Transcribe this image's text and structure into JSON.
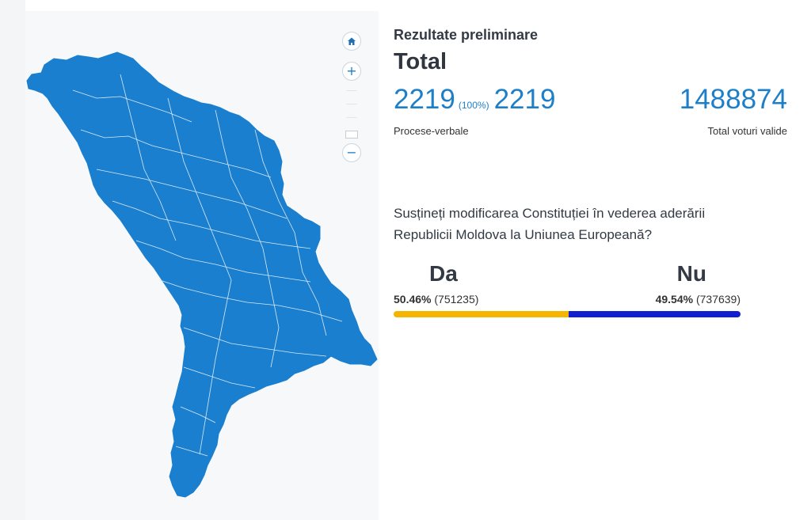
{
  "map": {
    "fill_color": "#1a7fcf",
    "border_color": "#d8e9f7",
    "controls": [
      {
        "name": "home",
        "icon": "home-icon"
      },
      {
        "name": "zoom_in",
        "icon": "plus-icon",
        "glyph": "+"
      },
      {
        "name": "zoom_out",
        "icon": "minus-icon",
        "glyph": "−"
      }
    ]
  },
  "results": {
    "subtitle": "Rezultate preliminare",
    "title": "Total",
    "processed": "2219",
    "processed_pct": "(100%)",
    "processed_total": "2219",
    "processed_label": "Procese-verbale",
    "valid_votes": "1488874",
    "valid_votes_label": "Total voturi valide",
    "question": "Susțineți modificarea Constituției în vederea aderării Republicii Moldova la Uniunea Europeană?",
    "yes": {
      "label": "Da",
      "percent": "50.46%",
      "votes": "(751235)",
      "share": 0.5046,
      "color": "#f5b400"
    },
    "no": {
      "label": "Nu",
      "percent": "49.54%",
      "votes": "(737639)",
      "share": 0.4954,
      "color": "#0f1fd1"
    }
  }
}
